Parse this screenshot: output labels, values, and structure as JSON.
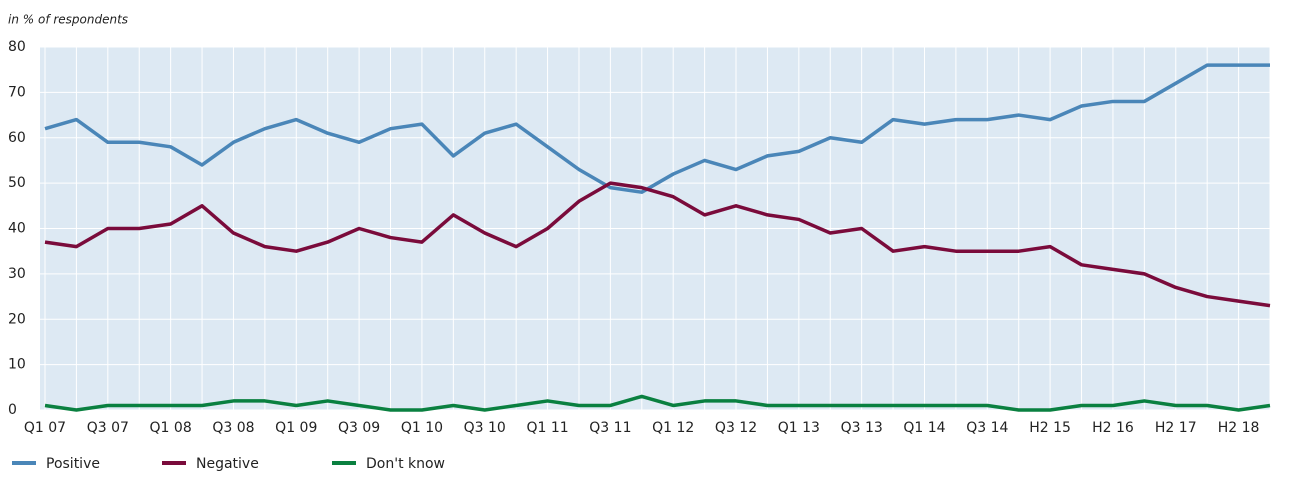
{
  "chart_data": {
    "type": "line",
    "subtitle": "in % of respondents",
    "categories": [
      "Q1 07",
      null,
      "Q3 07",
      null,
      "Q1 08",
      null,
      "Q3 08",
      null,
      "Q1 09",
      null,
      "Q3 09",
      null,
      "Q1 10",
      null,
      "Q3 10",
      null,
      "Q1 11",
      null,
      "Q3 11",
      null,
      "Q1 12",
      null,
      "Q3 12",
      null,
      "Q1 13",
      null,
      "Q3 13",
      null,
      "Q1 14",
      null,
      "Q3 14",
      null,
      "H2 15",
      null,
      "H2 16",
      null,
      "H2 17",
      null,
      "H2 18",
      null
    ],
    "series": [
      {
        "name": "Positive",
        "color": "#4a86b8",
        "values": [
          62,
          64,
          59,
          59,
          58,
          54,
          59,
          62,
          64,
          61,
          59,
          62,
          63,
          56,
          61,
          63,
          58,
          53,
          49,
          48,
          52,
          55,
          53,
          56,
          57,
          60,
          59,
          64,
          63,
          64,
          64,
          65,
          64,
          67,
          68,
          68,
          72,
          76,
          76,
          76
        ]
      },
      {
        "name": "Negative",
        "color": "#7a0b3b",
        "values": [
          37,
          36,
          40,
          40,
          41,
          45,
          39,
          36,
          35,
          37,
          40,
          38,
          37,
          43,
          39,
          36,
          40,
          46,
          50,
          49,
          47,
          43,
          45,
          43,
          42,
          39,
          40,
          35,
          36,
          35,
          35,
          35,
          36,
          32,
          31,
          30,
          27,
          25,
          24,
          23
        ]
      },
      {
        "name": "Don't know",
        "color": "#0a8040",
        "values": [
          1,
          0,
          1,
          1,
          1,
          1,
          2,
          2,
          1,
          2,
          1,
          0,
          0,
          1,
          0,
          1,
          2,
          1,
          1,
          3,
          1,
          2,
          2,
          1,
          1,
          1,
          1,
          1,
          1,
          1,
          1,
          0,
          0,
          1,
          1,
          2,
          1,
          1,
          0,
          1
        ]
      }
    ],
    "ylim": [
      0,
      80
    ],
    "yticks": [
      0,
      10,
      20,
      30,
      40,
      50,
      60,
      70,
      80
    ],
    "grid": true,
    "plot_background": "#dde9f3",
    "legend": "bottom-left"
  }
}
